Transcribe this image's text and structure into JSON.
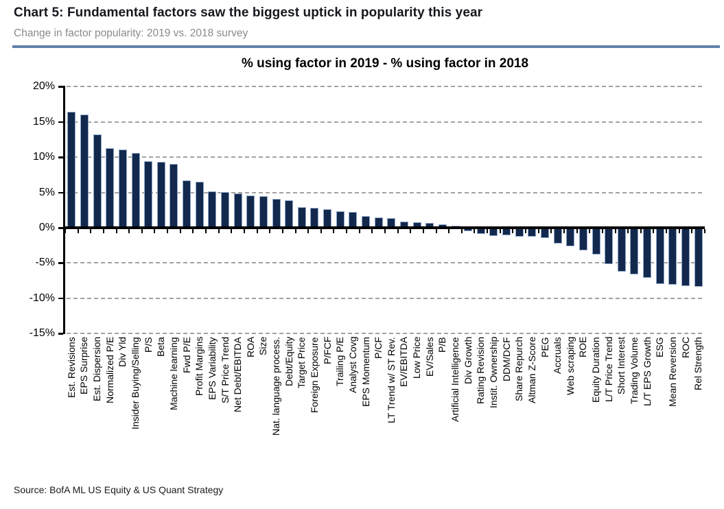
{
  "header": {
    "title": "Chart 5: Fundamental factors saw the biggest uptick in popularity this year",
    "subtitle": "Change in factor popularity: 2019 vs. 2018 survey"
  },
  "footer": {
    "source": "Source: BofA ML US Equity & US Quant Strategy"
  },
  "colors": {
    "bar_fill": "#12294d",
    "bar_edge": "#8fa6c6",
    "axis": "#000000",
    "grid": "#a2a2a2",
    "header_rule": "#6282ab",
    "title_text": "#16161e",
    "subtitle_text": "#8a8a8a"
  },
  "chart_data": {
    "type": "bar",
    "title": "% using factor in 2019 - % using factor in 2018",
    "xlabel": "",
    "ylabel": "",
    "ylim": [
      -15,
      20
    ],
    "ytick_values": [
      20,
      15,
      10,
      5,
      0,
      -5,
      -10,
      -15
    ],
    "ytick_labels": [
      "20%",
      "15%",
      "10%",
      "5%",
      "0%",
      "-5%",
      "-10%",
      "-15%"
    ],
    "grid": "horizontal-dashed",
    "legend": "none",
    "categories": [
      "Est. Revisions",
      "EPS Surprise",
      "Est. Dispersion",
      "Normalized P/E",
      "Div Yld",
      "Insider Buying/Selling",
      "P/S",
      "Beta",
      "Machine learning",
      "Fwd P/E",
      "Profit Margins",
      "EPS Variability",
      "S/T Price Trend",
      "Net Debt/EBITDA",
      "ROA",
      "Size",
      "Nat. language process.",
      "Debt/Equity",
      "Target Price",
      "Foreign Exposure",
      "P/FCF",
      "Trailing P/E",
      "Analyst Covg",
      "EPS Momentum",
      "P/CF",
      "LT Trend w/ ST Rev.",
      "EV/EBITDA",
      "Low Price",
      "EV/Sales",
      "P/B",
      "Artificial Intelligence",
      "Div Growth",
      "Rating Revision",
      "Instit. Ownership",
      "DDM/DCF",
      "Share Repurch",
      "Altman Z-Score",
      "PEG",
      "Accruals",
      "Web scraping",
      "ROE",
      "Equity Duration",
      "L/T Price Trend",
      "Short Interest",
      "Trading Volume",
      "L/T EPS Growth",
      "ESG",
      "Mean Reversion",
      "ROC",
      "Rel Strength"
    ],
    "values": [
      16.4,
      16.0,
      13.2,
      11.3,
      11.1,
      10.6,
      9.4,
      9.3,
      9.0,
      6.7,
      6.5,
      5.2,
      5.1,
      4.9,
      4.6,
      4.5,
      4.1,
      3.9,
      2.9,
      2.8,
      2.6,
      2.3,
      2.2,
      1.7,
      1.5,
      1.4,
      0.9,
      0.8,
      0.7,
      0.5,
      0.3,
      -0.5,
      -0.9,
      -1.2,
      -1.1,
      -1.3,
      -1.3,
      -1.5,
      -2.2,
      -2.6,
      -3.2,
      -3.8,
      -5.2,
      -6.2,
      -6.6,
      -7.1,
      -8.0,
      -8.1,
      -8.3,
      -8.4
    ]
  }
}
